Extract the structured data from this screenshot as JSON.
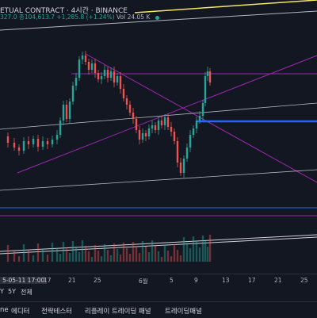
{
  "header": {
    "title": "ETUAL CONTRACT · 4시간 · BINANCE",
    "stats_prefix": "327.0",
    "stats_low": "종104,613.7",
    "stats_change": "+1,285.8 (+1.24%)",
    "stats_volume": "Vol 24.05 K"
  },
  "colors": {
    "background": "#131722",
    "up_candle": "#26a69a",
    "down_candle": "#ef5350",
    "trendline_purple": "#9c27b0",
    "level_blue": "#2962ff",
    "grid_line": "#b2b5be",
    "highlight_yellow": "#f5e663"
  },
  "time_axis": {
    "highlight_date": "5-05-11",
    "highlight_time": "17:00",
    "ticks": [
      "17",
      "21",
      "25",
      "6월",
      "5",
      "9",
      "13",
      "17",
      "21",
      "25"
    ]
  },
  "range_bar": {
    "items": [
      "Y",
      "5Y",
      "전체"
    ]
  },
  "bottom_tabs": {
    "tabs": [
      "ne",
      "에디터",
      "전략테스터",
      "리플레이 트레이딩 패널",
      "트레이딩패널"
    ]
  },
  "chart_data": {
    "type": "candlestick",
    "symbol_visible": "ETUAL CONTRACT",
    "interval": "4시간",
    "exchange": "BINANCE",
    "x_ticks": [
      "17",
      "21",
      "25",
      "6월",
      "5",
      "9",
      "13",
      "17",
      "21",
      "25"
    ],
    "grid": false
  }
}
